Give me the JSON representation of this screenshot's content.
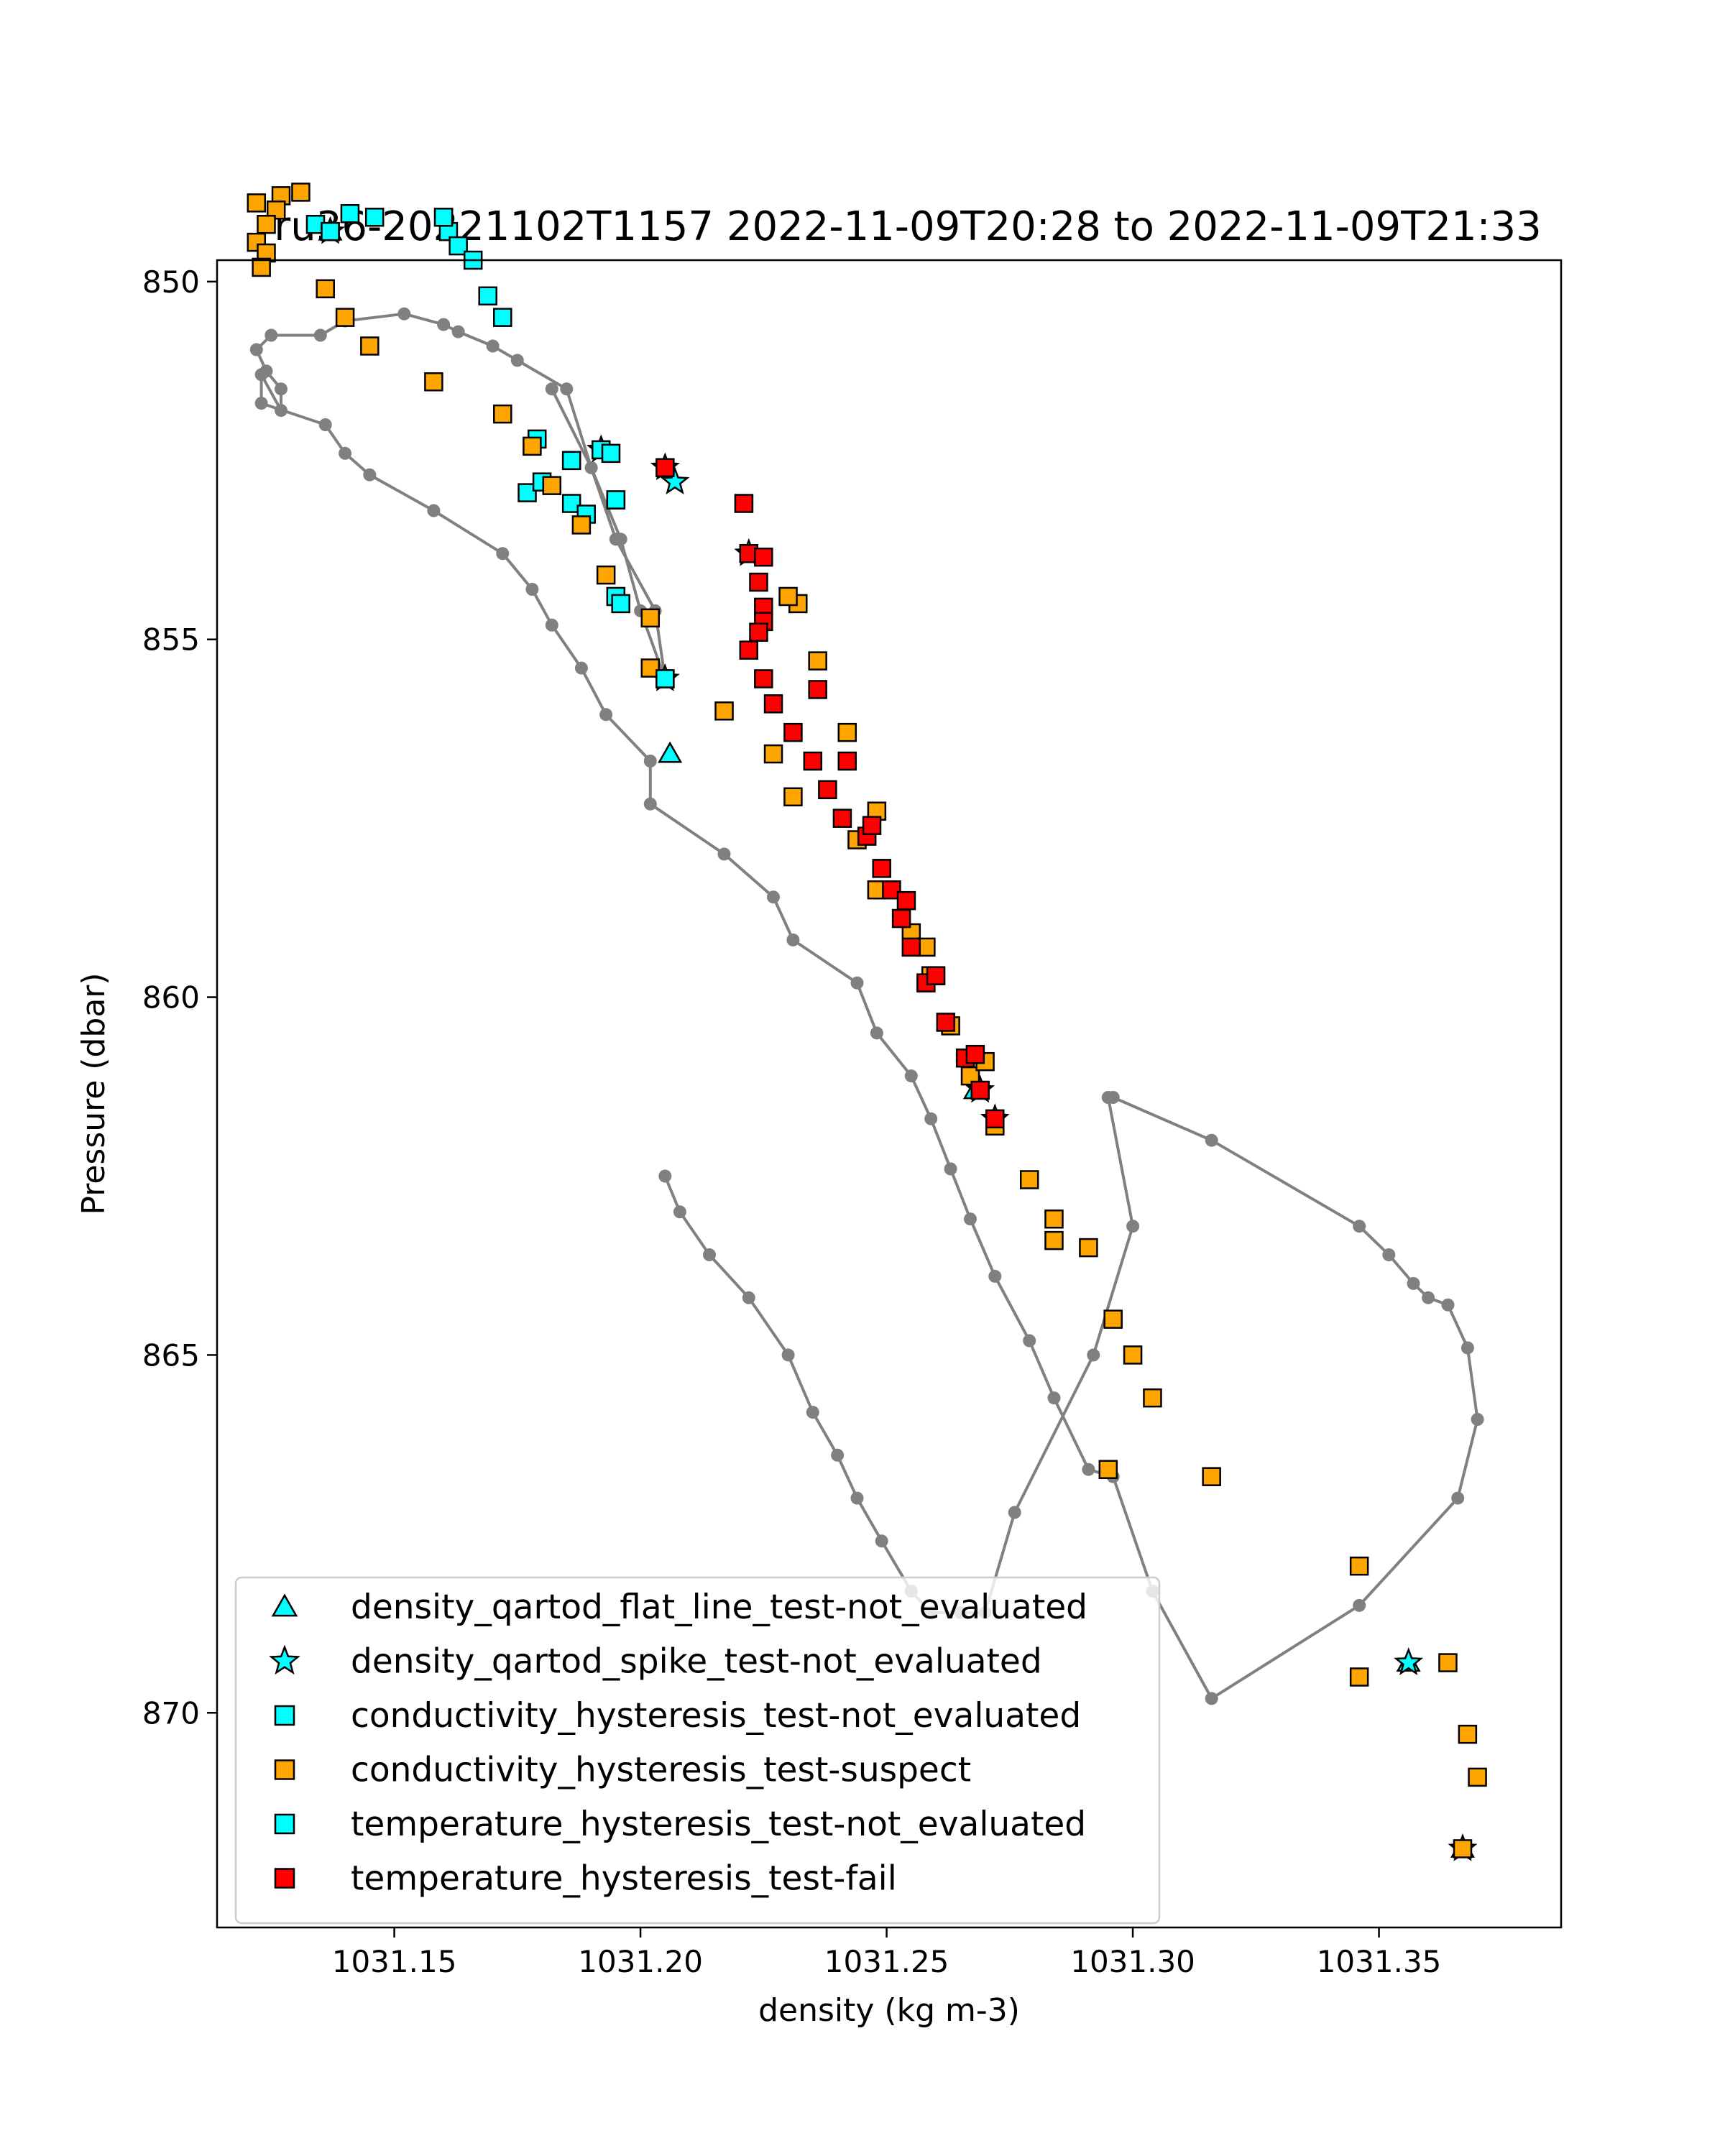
{
  "chart_data": {
    "type": "scatter",
    "title": "ru36-20221102T1157 2022-11-09T20:28 to 2022-11-09T21:33",
    "xlabel": "density (kg m-3)",
    "ylabel": "Pressure (dbar)",
    "xlim": [
      1031.114,
      1031.387
    ],
    "ylim": [
      873.0,
      849.7
    ],
    "y_inverted": true,
    "grid": false,
    "legend_position": "lower-left",
    "x_ticks": [
      1031.15,
      1031.2,
      1031.25,
      1031.3,
      1031.35
    ],
    "x_tick_labels": [
      "1031.15",
      "1031.20",
      "1031.25",
      "1031.30",
      "1031.35"
    ],
    "y_ticks": [
      850,
      855,
      860,
      865,
      870
    ],
    "y_tick_labels": [
      "850",
      "855",
      "860",
      "865",
      "870"
    ],
    "colors": {
      "line": "#808080",
      "not_evaluated": "#00ffff",
      "suspect": "#ffa500",
      "fail": "#ff0000",
      "edge": "#000000"
    },
    "profiles": [
      {
        "description_hidden": "up-cast-1",
        "x": [
          1031.205,
          1031.2,
          1031.196,
          1031.19,
          1031.182
        ],
        "y": [
          855.55,
          854.6,
          853.6,
          852.6,
          851.5
        ]
      },
      {
        "description_hidden": "trajectory",
        "x": [
          1031.205,
          1031.203,
          1031.195,
          1031.19,
          1031.185,
          1031.175,
          1031.17,
          1031.163,
          1031.16,
          1031.152,
          1031.14,
          1031.135,
          1031.125,
          1031.122,
          1031.124,
          1031.127,
          1031.127,
          1031.123,
          1031.123,
          1031.136,
          1031.14,
          1031.145,
          1031.158,
          1031.172,
          1031.178,
          1031.182,
          1031.188,
          1031.193,
          1031.202,
          1031.202,
          1031.217,
          1031.227,
          1031.231,
          1031.244,
          1031.248,
          1031.255,
          1031.259,
          1031.263,
          1031.267,
          1031.272,
          1031.279,
          1031.284,
          1031.291,
          1031.296,
          1031.304,
          1031.316,
          1031.346,
          1031.366,
          1031.37,
          1031.368,
          1031.364,
          1031.36,
          1031.357,
          1031.352,
          1031.346,
          1031.316,
          1031.296,
          1031.295,
          1031.3,
          1031.292,
          1031.276,
          1031.27,
          1031.265,
          1031.259,
          1031.255,
          1031.249,
          1031.244,
          1031.24,
          1031.235,
          1031.23,
          1031.222,
          1031.214,
          1031.208,
          1031.205
        ],
        "y": [
          855.55,
          854.6,
          853.6,
          852.6,
          851.5,
          851.1,
          850.9,
          850.7,
          850.6,
          850.45,
          850.55,
          850.75,
          850.75,
          850.95,
          851.25,
          851.5,
          851.8,
          851.3,
          851.7,
          852.0,
          852.4,
          852.7,
          853.2,
          853.8,
          854.3,
          854.8,
          855.4,
          856.05,
          856.7,
          857.3,
          858.0,
          858.6,
          859.2,
          859.8,
          860.5,
          861.1,
          861.7,
          862.4,
          863.1,
          863.9,
          864.8,
          865.6,
          866.6,
          866.7,
          868.3,
          869.8,
          868.5,
          867.0,
          865.9,
          864.9,
          864.3,
          864.2,
          864.0,
          863.6,
          863.2,
          862.0,
          861.4,
          861.4,
          863.2,
          865.0,
          867.2,
          868.6,
          868.6,
          868.6,
          868.3,
          867.6,
          867.0,
          866.4,
          865.8,
          865.0,
          864.2,
          863.6,
          863.0,
          862.5
        ]
      }
    ],
    "legend": [
      {
        "label": "density_qartod_flat_line_test-not_evaluated",
        "marker": "triangle",
        "color": "#00ffff"
      },
      {
        "label": "density_qartod_spike_test-not_evaluated",
        "marker": "star",
        "color": "#00ffff"
      },
      {
        "label": "conductivity_hysteresis_test-not_evaluated",
        "marker": "square",
        "color": "#00ffff"
      },
      {
        "label": "conductivity_hysteresis_test-suspect",
        "marker": "square",
        "color": "#ffa500"
      },
      {
        "label": "temperature_hysteresis_test-not_evaluated",
        "marker": "square",
        "color": "#00ffff"
      },
      {
        "label": "temperature_hysteresis_test-fail",
        "marker": "square",
        "color": "#ff0000"
      }
    ],
    "series": [
      {
        "name": "density_qartod_flat_line_test-not_evaluated",
        "marker": "triangle",
        "points": [
          [
            1031.137,
            849.3
          ],
          [
            1031.206,
            856.6
          ],
          [
            1031.268,
            861.3
          ],
          [
            1031.356,
            869.3
          ],
          [
            1031.367,
            871.9
          ]
        ]
      },
      {
        "name": "density_qartod_spike_test-not_evaluated",
        "marker": "star",
        "points": [
          [
            1031.137,
            849.3
          ],
          [
            1031.205,
            855.55
          ],
          [
            1031.192,
            852.35
          ],
          [
            1031.205,
            852.6
          ],
          [
            1031.207,
            852.8
          ],
          [
            1031.222,
            853.8
          ],
          [
            1031.269,
            861.3
          ],
          [
            1031.272,
            861.7
          ],
          [
            1031.356,
            869.3
          ],
          [
            1031.367,
            871.9
          ]
        ]
      },
      {
        "name": "conductivity_hysteresis_test-not_evaluated",
        "marker": "square",
        "points": [
          [
            1031.134,
            849.2
          ],
          [
            1031.137,
            849.3
          ],
          [
            1031.141,
            849.05
          ],
          [
            1031.146,
            849.1
          ],
          [
            1031.16,
            849.1
          ],
          [
            1031.161,
            849.3
          ],
          [
            1031.163,
            849.5
          ],
          [
            1031.166,
            849.7
          ],
          [
            1031.169,
            850.2
          ],
          [
            1031.172,
            850.5
          ],
          [
            1031.179,
            852.2
          ],
          [
            1031.186,
            852.5
          ],
          [
            1031.192,
            852.35
          ],
          [
            1031.194,
            852.4
          ],
          [
            1031.177,
            852.95
          ],
          [
            1031.18,
            852.8
          ],
          [
            1031.186,
            853.1
          ],
          [
            1031.189,
            853.25
          ],
          [
            1031.195,
            853.05
          ],
          [
            1031.195,
            854.4
          ],
          [
            1031.196,
            854.5
          ],
          [
            1031.205,
            855.55
          ]
        ]
      },
      {
        "name": "conductivity_hysteresis_test-suspect",
        "marker": "square",
        "points": [
          [
            1031.122,
            848.9
          ],
          [
            1031.127,
            848.8
          ],
          [
            1031.131,
            848.75
          ],
          [
            1031.126,
            849.0
          ],
          [
            1031.124,
            849.2
          ],
          [
            1031.122,
            849.45
          ],
          [
            1031.124,
            849.6
          ],
          [
            1031.123,
            849.8
          ],
          [
            1031.136,
            850.1
          ],
          [
            1031.14,
            850.5
          ],
          [
            1031.145,
            850.9
          ],
          [
            1031.158,
            851.4
          ],
          [
            1031.172,
            851.85
          ],
          [
            1031.178,
            852.3
          ],
          [
            1031.182,
            852.85
          ],
          [
            1031.188,
            853.4
          ],
          [
            1031.193,
            854.1
          ],
          [
            1031.202,
            854.7
          ],
          [
            1031.202,
            855.4
          ],
          [
            1031.217,
            856.0
          ],
          [
            1031.227,
            856.6
          ],
          [
            1031.231,
            857.2
          ],
          [
            1031.244,
            857.8
          ],
          [
            1031.248,
            858.5
          ],
          [
            1031.255,
            859.1
          ],
          [
            1031.259,
            859.7
          ],
          [
            1031.263,
            860.4
          ],
          [
            1031.267,
            861.1
          ],
          [
            1031.272,
            861.8
          ],
          [
            1031.279,
            862.55
          ],
          [
            1031.284,
            863.4
          ],
          [
            1031.291,
            863.5
          ],
          [
            1031.296,
            864.5
          ],
          [
            1031.304,
            865.6
          ],
          [
            1031.316,
            866.7
          ],
          [
            1031.346,
            867.95
          ],
          [
            1031.364,
            869.3
          ],
          [
            1031.368,
            870.3
          ],
          [
            1031.37,
            870.9
          ],
          [
            1031.367,
            871.9
          ],
          [
            1031.346,
            869.5
          ],
          [
            1031.3,
            865.0
          ],
          [
            1031.284,
            863.1
          ],
          [
            1031.27,
            860.9
          ],
          [
            1031.258,
            859.3
          ],
          [
            1031.248,
            857.4
          ],
          [
            1031.242,
            856.3
          ],
          [
            1031.236,
            855.3
          ],
          [
            1031.232,
            854.5
          ],
          [
            1031.23,
            854.4
          ],
          [
            1031.295,
            866.6
          ]
        ]
      },
      {
        "name": "temperature_hysteresis_test-not_evaluated",
        "marker": "square",
        "points": [
          [
            1031.137,
            849.3
          ],
          [
            1031.16,
            849.1
          ],
          [
            1031.186,
            852.5
          ],
          [
            1031.195,
            853.05
          ],
          [
            1031.205,
            855.55
          ]
        ]
      },
      {
        "name": "temperature_hysteresis_test-fail",
        "marker": "square",
        "points": [
          [
            1031.205,
            852.6
          ],
          [
            1031.221,
            853.1
          ],
          [
            1031.222,
            853.8
          ],
          [
            1031.225,
            853.85
          ],
          [
            1031.224,
            854.2
          ],
          [
            1031.225,
            854.55
          ],
          [
            1031.225,
            854.75
          ],
          [
            1031.224,
            854.9
          ],
          [
            1031.222,
            855.15
          ],
          [
            1031.225,
            855.55
          ],
          [
            1031.227,
            855.9
          ],
          [
            1031.231,
            856.3
          ],
          [
            1031.235,
            856.7
          ],
          [
            1031.236,
            855.7
          ],
          [
            1031.238,
            857.1
          ],
          [
            1031.241,
            857.5
          ],
          [
            1031.242,
            856.7
          ],
          [
            1031.246,
            857.75
          ],
          [
            1031.247,
            857.6
          ],
          [
            1031.249,
            858.2
          ],
          [
            1031.251,
            858.5
          ],
          [
            1031.253,
            858.9
          ],
          [
            1031.254,
            858.65
          ],
          [
            1031.255,
            859.3
          ],
          [
            1031.258,
            859.8
          ],
          [
            1031.26,
            859.7
          ],
          [
            1031.262,
            860.35
          ],
          [
            1031.266,
            860.85
          ],
          [
            1031.268,
            860.8
          ],
          [
            1031.269,
            861.3
          ],
          [
            1031.272,
            861.7
          ]
        ]
      }
    ]
  }
}
